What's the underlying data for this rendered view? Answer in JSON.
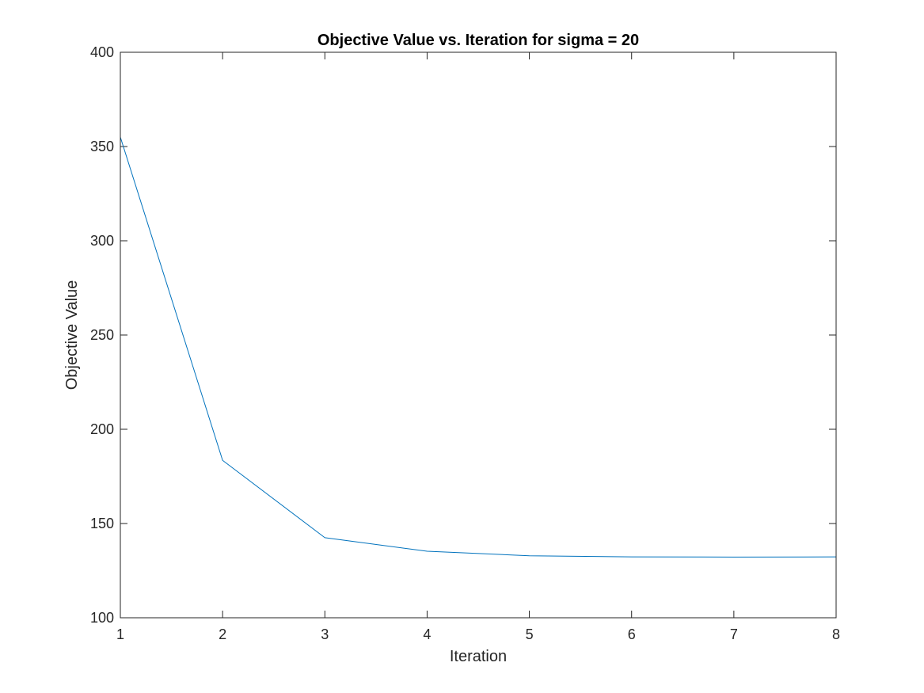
{
  "chart_data": {
    "type": "line",
    "title": "Objective Value vs. Iteration for sigma = 20",
    "xlabel": "Iteration",
    "ylabel": "Objective Value",
    "xlim": [
      1,
      8
    ],
    "ylim": [
      100,
      400
    ],
    "xticks": [
      1,
      2,
      3,
      4,
      5,
      6,
      7,
      8
    ],
    "yticks": [
      100,
      150,
      200,
      250,
      300,
      350,
      400
    ],
    "grid": false,
    "box": true,
    "series": [
      {
        "x": [
          1,
          2,
          3,
          4,
          5,
          6,
          7,
          8
        ],
        "values": [
          355,
          183.5,
          142.5,
          135.3,
          132.9,
          132.3,
          132.2,
          132.3
        ],
        "color": "#0072BD"
      }
    ]
  }
}
